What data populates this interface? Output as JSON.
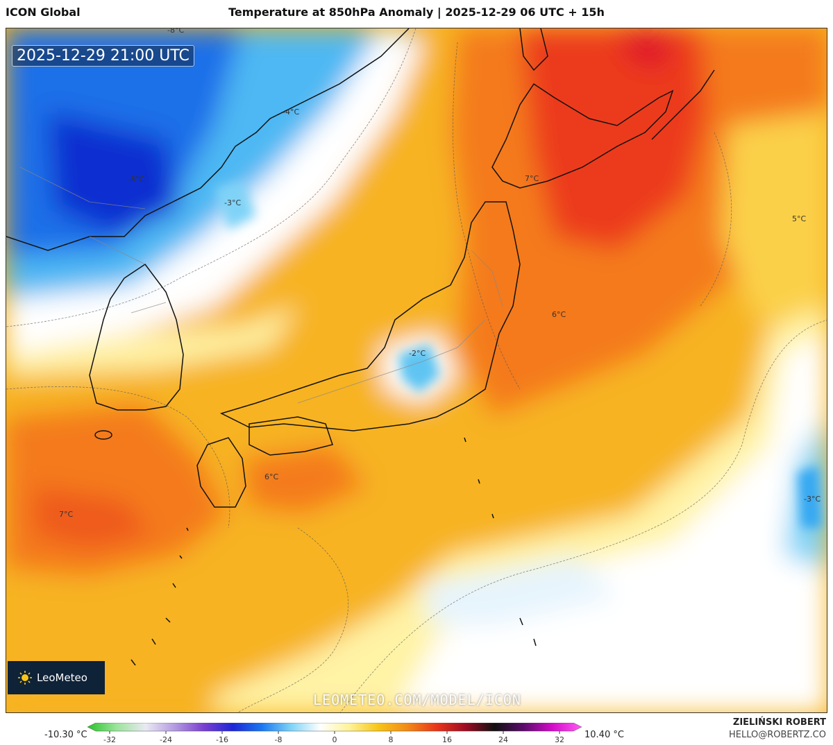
{
  "header": {
    "model": "ICON Global",
    "title": "Temperature at 850hPa Anomaly | 2025-12-29 06 UTC + 15h"
  },
  "map": {
    "valid_time": "2025-12-29 21:00 UTC",
    "watermark": "LEOMETEO.COM/MODEL/ICON",
    "logo": "LeoMeteo",
    "contour_labels": [
      "-8°C",
      "-8°C",
      "-4°C",
      "-3°C",
      "7°C",
      "5°C",
      "6°C",
      "-2°C",
      "6°C",
      "7°C",
      "-3°C"
    ]
  },
  "legend": {
    "min_label": "-10.30 °C",
    "max_label": "10.40 °C",
    "ticks": [
      "-32",
      "-24",
      "-16",
      "-8",
      "0",
      "8",
      "16",
      "24",
      "32"
    ],
    "stops": [
      "#27c427",
      "#9be49b",
      "#e9e9f3",
      "#b49be0",
      "#7a3fd0",
      "#1d25d6",
      "#1a78f0",
      "#7fd3f7",
      "#ffffff",
      "#fff39a",
      "#f7c518",
      "#f28a15",
      "#e8361a",
      "#9e0b24",
      "#101010",
      "#5a0b6a",
      "#d40bc9",
      "#ff5cf5"
    ]
  },
  "credits": {
    "author": "ZIELIŃSKI ROBERT",
    "email": "HELLO@ROBERTZ.CO"
  },
  "colors": {
    "cold_deep": "#0f3fd6",
    "cold": "#35a7f2",
    "neutral": "#ffffff",
    "warm": "#f7b321",
    "warmer": "#f47a1d",
    "hot": "#ec3b1b"
  }
}
